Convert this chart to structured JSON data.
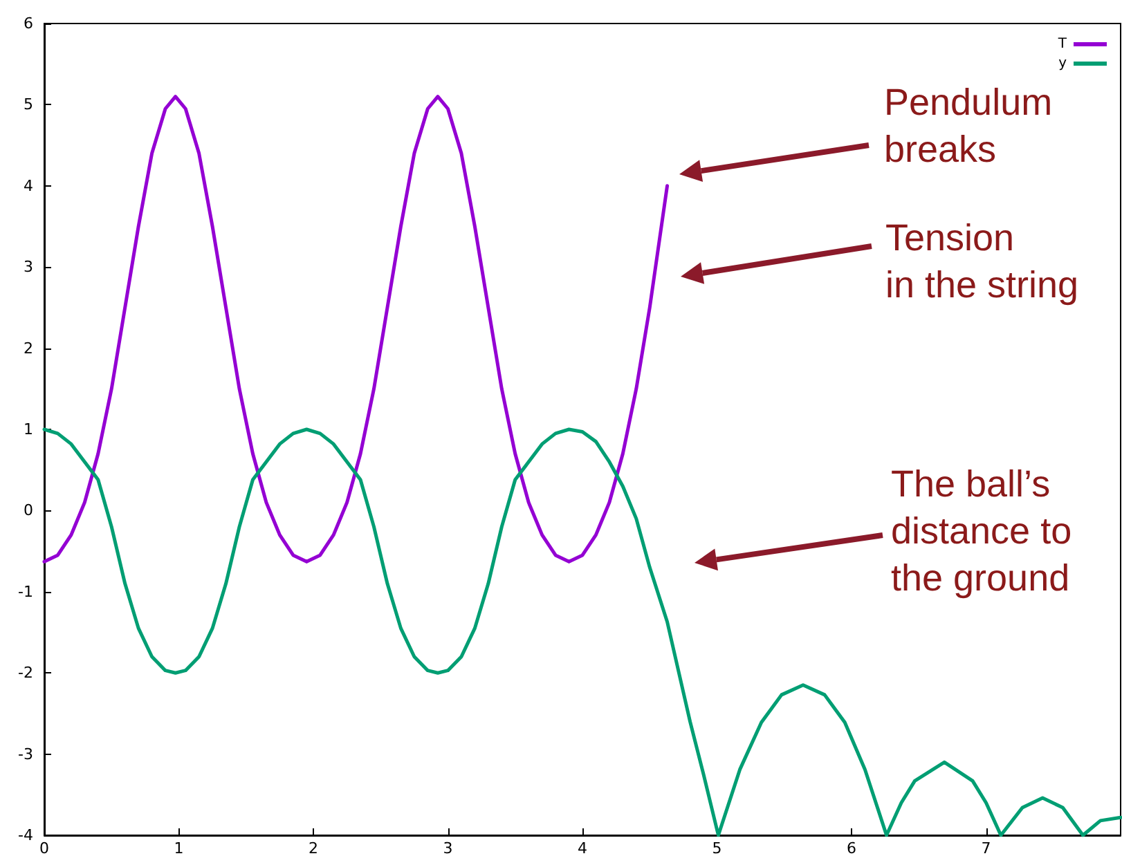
{
  "chart_data": {
    "type": "line",
    "xlim": [
      0,
      8
    ],
    "xticks": [
      0,
      1,
      2,
      3,
      4,
      5,
      6,
      7
    ],
    "ylim": [
      -4,
      6
    ],
    "yticks": [
      -4,
      -3,
      -2,
      -1,
      0,
      1,
      2,
      3,
      4,
      5,
      6
    ],
    "grid": false,
    "legend": "top right",
    "marker": "none",
    "line_style": "solid",
    "series": [
      {
        "name": "T",
        "color": "#9400d3",
        "x": [
          0,
          0.1,
          0.2,
          0.3,
          0.4,
          0.5,
          0.6,
          0.7,
          0.8,
          0.9,
          0.975,
          1.05,
          1.15,
          1.25,
          1.35,
          1.45,
          1.55,
          1.65,
          1.75,
          1.85,
          1.95,
          2.05,
          2.15,
          2.25,
          2.35,
          2.45,
          2.55,
          2.65,
          2.75,
          2.85,
          2.925,
          3.0,
          3.1,
          3.2,
          3.3,
          3.4,
          3.5,
          3.6,
          3.7,
          3.8,
          3.9,
          4.0,
          4.1,
          4.2,
          4.3,
          4.4,
          4.5,
          4.63
        ],
        "values": [
          -0.63,
          -0.55,
          -0.3,
          0.1,
          0.7,
          1.5,
          2.5,
          3.5,
          4.4,
          4.95,
          5.1,
          4.95,
          4.4,
          3.5,
          2.5,
          1.5,
          0.7,
          0.1,
          -0.3,
          -0.55,
          -0.63,
          -0.55,
          -0.3,
          0.1,
          0.7,
          1.5,
          2.5,
          3.5,
          4.4,
          4.95,
          5.1,
          4.95,
          4.4,
          3.5,
          2.5,
          1.5,
          0.7,
          0.1,
          -0.3,
          -0.55,
          -0.63,
          -0.55,
          -0.3,
          0.1,
          0.7,
          1.5,
          2.5,
          4.0
        ]
      },
      {
        "name": "y",
        "color": "#009e73",
        "x": [
          0,
          0.1,
          0.2,
          0.3,
          0.4,
          0.5,
          0.6,
          0.7,
          0.8,
          0.9,
          0.975,
          1.05,
          1.15,
          1.25,
          1.35,
          1.45,
          1.55,
          1.65,
          1.75,
          1.85,
          1.95,
          2.05,
          2.15,
          2.25,
          2.35,
          2.45,
          2.55,
          2.65,
          2.75,
          2.85,
          2.925,
          3.0,
          3.1,
          3.2,
          3.3,
          3.4,
          3.5,
          3.6,
          3.7,
          3.8,
          3.9,
          4.0,
          4.1,
          4.2,
          4.3,
          4.4,
          4.5,
          4.63,
          4.8,
          4.9,
          5.01,
          5.17,
          5.33,
          5.48,
          5.64,
          5.8,
          5.95,
          6.1,
          6.26,
          6.37,
          6.47,
          6.69,
          6.9,
          7.0,
          7.11,
          7.27,
          7.42,
          7.57,
          7.72,
          7.85,
          8.0
        ],
        "values": [
          1.0,
          0.95,
          0.82,
          0.6,
          0.38,
          -0.2,
          -0.9,
          -1.45,
          -1.8,
          -1.97,
          -2.0,
          -1.97,
          -1.8,
          -1.45,
          -0.9,
          -0.2,
          0.38,
          0.6,
          0.82,
          0.95,
          1.0,
          0.95,
          0.82,
          0.6,
          0.38,
          -0.2,
          -0.9,
          -1.45,
          -1.8,
          -1.97,
          -2.0,
          -1.97,
          -1.8,
          -1.45,
          -0.9,
          -0.2,
          0.38,
          0.6,
          0.82,
          0.95,
          1.0,
          0.97,
          0.85,
          0.6,
          0.3,
          -0.1,
          -0.7,
          -1.37,
          -2.6,
          -3.25,
          -4.0,
          -3.19,
          -2.61,
          -2.27,
          -2.15,
          -2.27,
          -2.61,
          -3.19,
          -4.0,
          -3.6,
          -3.33,
          -3.1,
          -3.33,
          -3.6,
          -4.0,
          -3.66,
          -3.54,
          -3.66,
          -4.0,
          -3.82,
          -3.78
        ]
      }
    ],
    "annotations": [
      "Pendulum\nbreaks",
      "Tension\nin the string",
      "The ball’s\ndistance to\nthe ground"
    ]
  }
}
